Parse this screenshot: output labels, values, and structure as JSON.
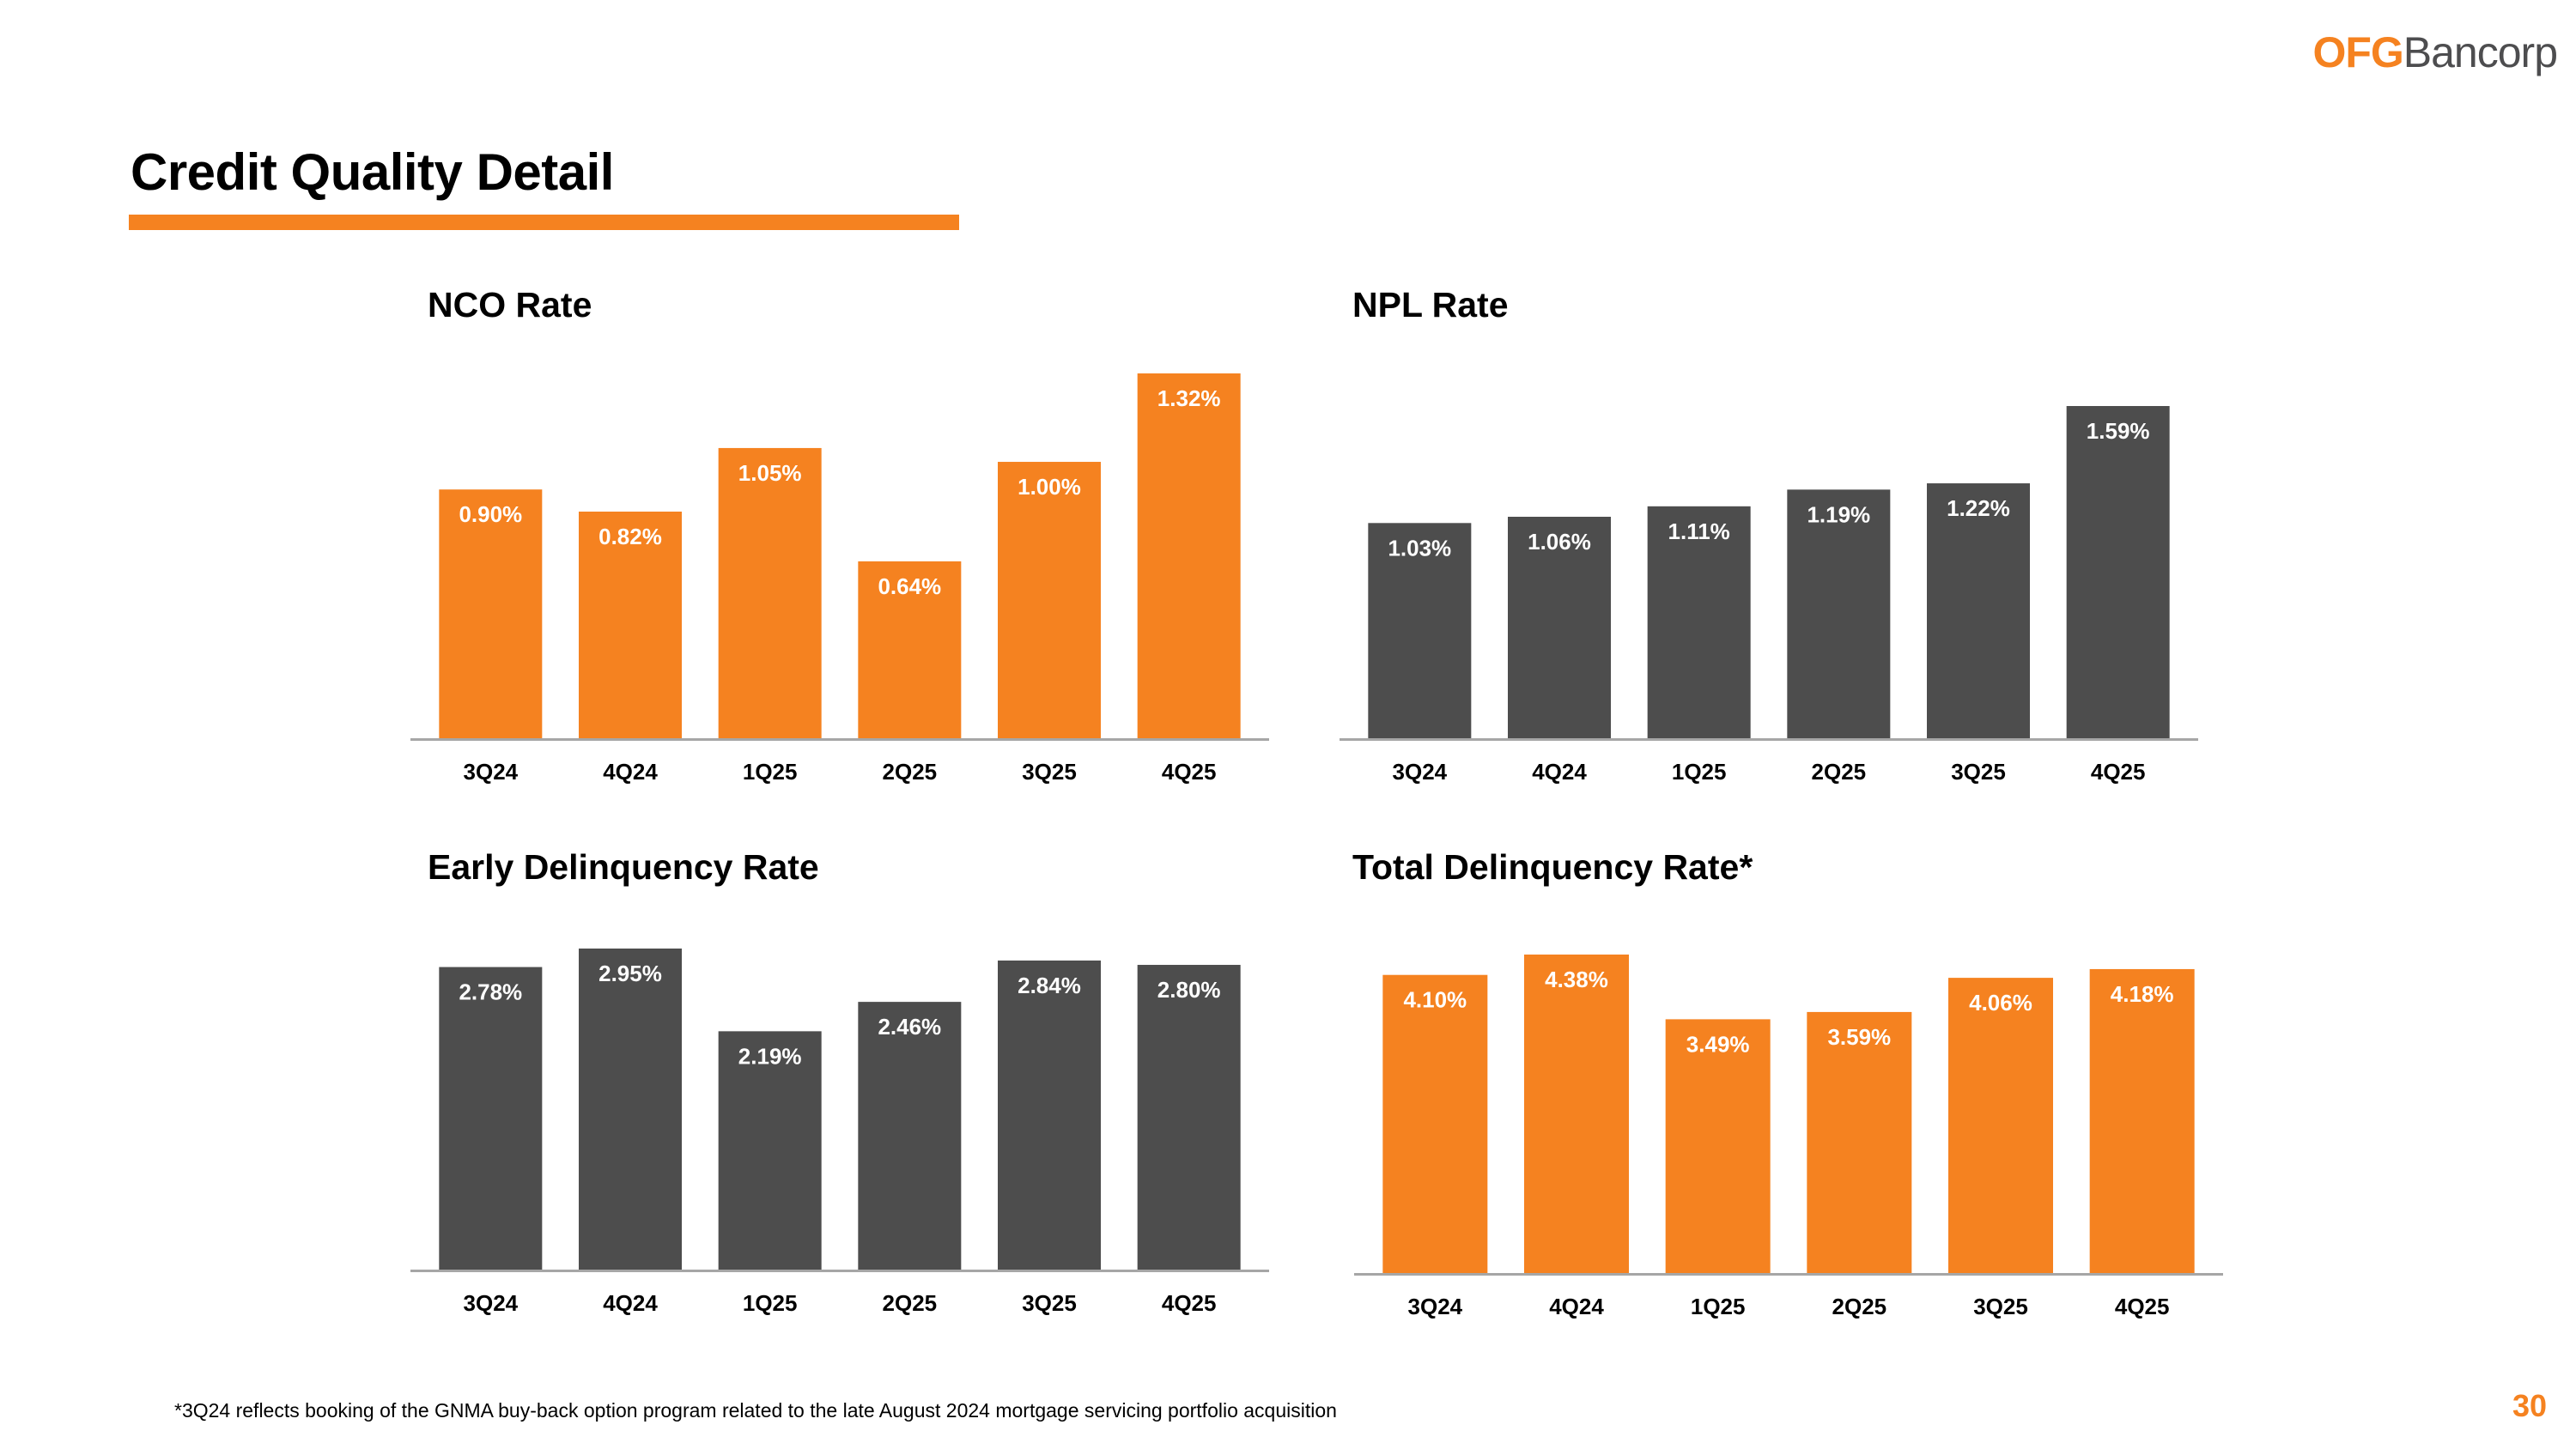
{
  "header": {
    "logo_primary": "OFG",
    "logo_secondary": "Bancorp",
    "page_title": "Credit Quality Detail"
  },
  "colors": {
    "brand_orange": "#f58220",
    "dark_gray": "#4d4d4d",
    "axis_gray": "#a6a6a6",
    "label_text": "#000000",
    "value_text": "#ffffff"
  },
  "chart_data": [
    {
      "id": "nco",
      "type": "bar",
      "title": "NCO Rate",
      "categories": [
        "3Q24",
        "4Q24",
        "1Q25",
        "2Q25",
        "3Q25",
        "4Q25"
      ],
      "values": [
        0.9,
        0.82,
        1.05,
        0.64,
        1.0,
        1.32
      ],
      "labels": [
        "0.90%",
        "0.82%",
        "1.05%",
        "0.64%",
        "1.00%",
        "1.32%"
      ],
      "color": "#f58220",
      "xlabel": "",
      "ylabel": "",
      "ylim": [
        0,
        1.32
      ],
      "grid": false,
      "legend": "none"
    },
    {
      "id": "npl",
      "type": "bar",
      "title": "NPL Rate",
      "categories": [
        "3Q24",
        "4Q24",
        "1Q25",
        "2Q25",
        "3Q25",
        "4Q25"
      ],
      "values": [
        1.03,
        1.06,
        1.11,
        1.19,
        1.22,
        1.59
      ],
      "labels": [
        "1.03%",
        "1.06%",
        "1.11%",
        "1.19%",
        "1.22%",
        "1.59%"
      ],
      "color": "#4d4d4d",
      "xlabel": "",
      "ylabel": "",
      "ylim": [
        0,
        1.59
      ],
      "grid": false,
      "legend": "none"
    },
    {
      "id": "early",
      "type": "bar",
      "title": "Early Delinquency Rate",
      "categories": [
        "3Q24",
        "4Q24",
        "1Q25",
        "2Q25",
        "3Q25",
        "4Q25"
      ],
      "values": [
        2.78,
        2.95,
        2.19,
        2.46,
        2.84,
        2.8
      ],
      "labels": [
        "2.78%",
        "2.95%",
        "2.19%",
        "2.46%",
        "2.84%",
        "2.80%"
      ],
      "color": "#4d4d4d",
      "xlabel": "",
      "ylabel": "",
      "ylim": [
        0,
        2.95
      ],
      "grid": false,
      "legend": "none"
    },
    {
      "id": "total",
      "type": "bar",
      "title": "Total Delinquency Rate*",
      "categories": [
        "3Q24",
        "4Q24",
        "1Q25",
        "2Q25",
        "3Q25",
        "4Q25"
      ],
      "values": [
        4.1,
        4.38,
        3.49,
        3.59,
        4.06,
        4.18
      ],
      "labels": [
        "4.10%",
        "4.38%",
        "3.49%",
        "3.59%",
        "4.06%",
        "4.18%"
      ],
      "color": "#f58220",
      "xlabel": "",
      "ylabel": "",
      "ylim": [
        0,
        4.38
      ],
      "grid": false,
      "legend": "none"
    }
  ],
  "footer": {
    "footnote": "*3Q24 reflects booking of the GNMA buy-back option program related to the late August 2024 mortgage servicing portfolio acquisition",
    "page_number": "30"
  }
}
